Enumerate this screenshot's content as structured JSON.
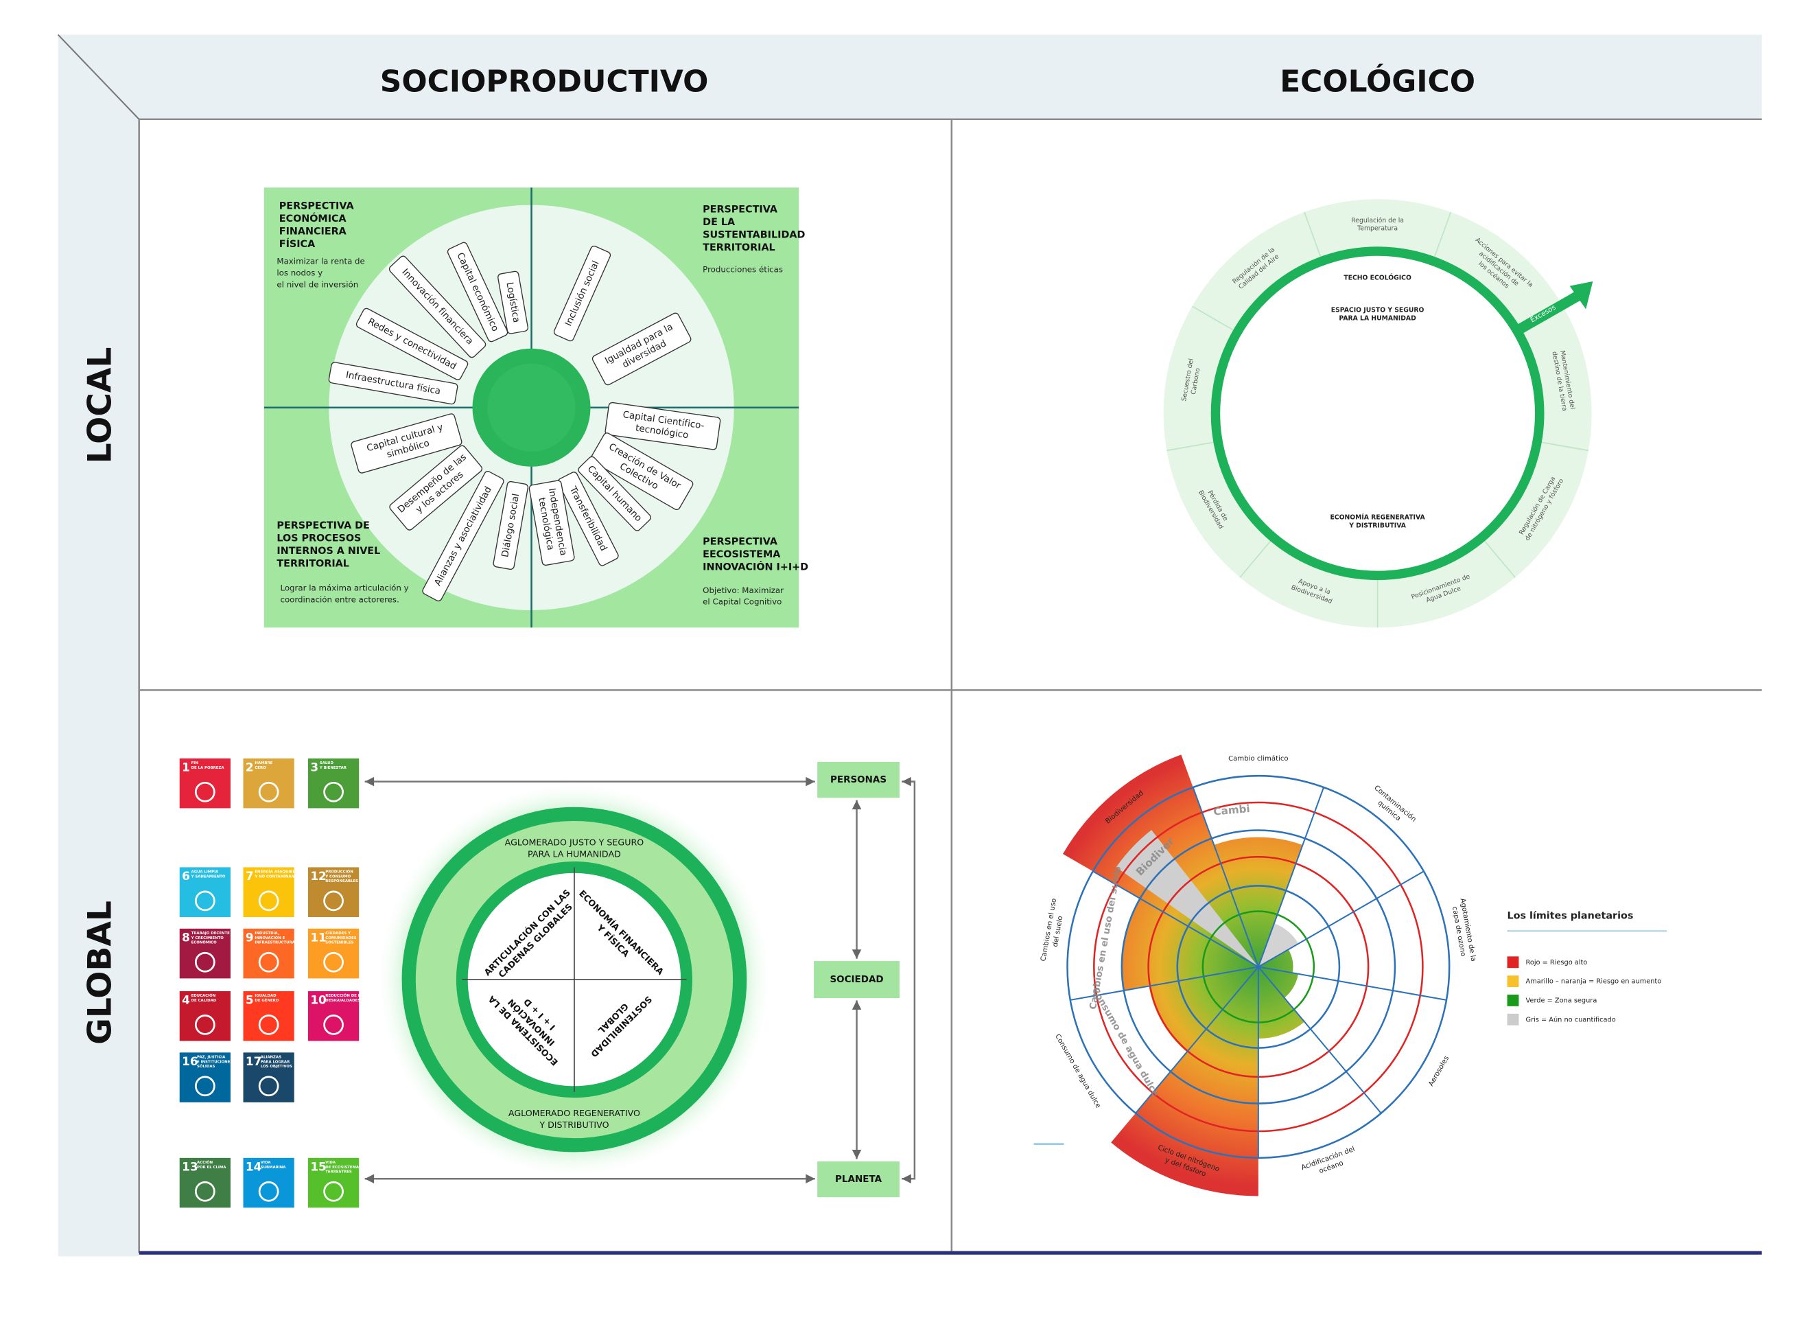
{
  "header": {
    "columns": [
      "SOCIOPRODUCTIVO",
      "ECOLÓGICO"
    ],
    "rows": [
      "LOCAL",
      "GLOBAL"
    ]
  },
  "socioproductive_local": {
    "corners": [
      {
        "title": [
          "PERSPECTIVA",
          "ECONÓMICA",
          "FINANCIERA",
          "FÍSICA"
        ],
        "text": [
          "Maximizar la renta de",
          "los nodos y",
          "el nivel de inversión"
        ]
      },
      {
        "title": [
          "PERSPECTIVA",
          "DE LA",
          "SUSTENTABILIDAD",
          "TERRITORIAL"
        ],
        "text": [
          "Producciones éticas"
        ]
      },
      {
        "title": [
          "PERSPECTIVA DE",
          "LOS PROCESOS",
          "INTERNOS A NIVEL",
          "TERRITORIAL"
        ],
        "text": [
          "Lograr la máxima articulación y",
          "coordinación entre actoreres."
        ]
      },
      {
        "title": [
          "PERSPECTIVA",
          "EECOSISTEMA",
          "INNOVACIÓN I+I+D"
        ],
        "text": [
          "Objetivo: Maximizar",
          "el Capital Cognitivo"
        ]
      }
    ],
    "spokes": [
      [
        "Logística"
      ],
      [
        "Capital económico"
      ],
      [
        "Innovación financiera"
      ],
      [
        "Redes y conectividad"
      ],
      [
        "Infraestructura física"
      ],
      [
        "Inclusión social"
      ],
      [
        "Igualdad para la",
        "diversidad"
      ],
      [
        "Capital Científico-",
        "tecnológico"
      ],
      [
        "Creación de Valor",
        "Colectivo"
      ],
      [
        "Capital humano"
      ],
      [
        "Transferibilidad"
      ],
      [
        "Independencia",
        "tecnológica"
      ],
      [
        "Diálogo social"
      ],
      [
        "Alianzas y asociatividad"
      ],
      [
        "Desempeño de las",
        "y los actores"
      ],
      [
        "Capital cultural y",
        "simbólico"
      ]
    ]
  },
  "ecological_local": {
    "center_labels": [
      [
        "TECHO ECOLÓGICO"
      ],
      [
        "ESPACIO JUSTO Y SEGURO",
        "PARA LA HUMANIDAD"
      ],
      [
        "ECONOMÍA REGENERATIVA",
        "Y DISTRIBUTIVA"
      ]
    ],
    "ring_labels": [
      [
        "Regulación de la",
        "Temperatura"
      ],
      [
        "Acciones para evitar la",
        "acidificación de",
        "los océanos"
      ],
      [
        "Mantenimiento del",
        "destino de la tierra"
      ],
      [
        "Regulación de Carga",
        "de nitrógeno y fósforo"
      ],
      [
        "Posicionamiento de",
        "Agua Dulce"
      ],
      [
        "Apoyo a la",
        "Biodiversidad"
      ],
      [
        "Pérdida de",
        "Biodiversidad"
      ],
      [
        "Secuestro del",
        "Carbono"
      ],
      [
        "Regulación de la",
        "Calidad del Aire"
      ]
    ],
    "arrow_label": "Excesos"
  },
  "socioproductive_global": {
    "sdgs": [
      {
        "number": 1,
        "title": [
          "FIN",
          "DE LA POBREZA"
        ],
        "color": "#e5243b"
      },
      {
        "number": 2,
        "title": [
          "HAMBRE",
          "CERO"
        ],
        "color": "#dda63a"
      },
      {
        "number": 3,
        "title": [
          "SALUD",
          "Y BIENESTAR"
        ],
        "color": "#4c9f38"
      },
      {
        "number": 6,
        "title": [
          "AGUA LIMPIA",
          "Y SANEAMIENTO"
        ],
        "color": "#26bde2"
      },
      {
        "number": 7,
        "title": [
          "ENERGÍA ASEQUIBLE",
          "Y NO CONTAMINANTE"
        ],
        "color": "#fcc30b"
      },
      {
        "number": 12,
        "title": [
          "PRODUCCIÓN",
          "Y CONSUMO",
          "RESPONSABLES"
        ],
        "color": "#bf8b2e"
      },
      {
        "number": 8,
        "title": [
          "TRABAJO DECENTE",
          "Y CRECIMIENTO",
          "ECONÓMICO"
        ],
        "color": "#a21942"
      },
      {
        "number": 9,
        "title": [
          "INDUSTRIA,",
          "INNOVACIÓN E",
          "INFRAESTRUCTURA"
        ],
        "color": "#fd6925"
      },
      {
        "number": 11,
        "title": [
          "CIUDADES Y",
          "COMUNIDADES",
          "SOSTENIBLES"
        ],
        "color": "#fd9d24"
      },
      {
        "number": 4,
        "title": [
          "EDUCACIÓN",
          "DE CALIDAD"
        ],
        "color": "#c5192d"
      },
      {
        "number": 5,
        "title": [
          "IGUALDAD",
          "DE GÉNERO"
        ],
        "color": "#ff3a21"
      },
      {
        "number": 10,
        "title": [
          "REDUCCIÓN DE LAS",
          "DESIGUALDADES"
        ],
        "color": "#dd1367"
      },
      {
        "number": 16,
        "title": [
          "PAZ, JUSTICIA",
          "E INSTITUCIONES",
          "SÓLIDAS"
        ],
        "color": "#00689d"
      },
      {
        "number": 17,
        "title": [
          "ALIANZAS",
          "PARA LOGRAR",
          "LOS OBJETIVOS"
        ],
        "color": "#19486a"
      },
      {
        "number": 13,
        "title": [
          "ACCIÓN",
          "POR EL CLIMA"
        ],
        "color": "#3f7e44"
      },
      {
        "number": 14,
        "title": [
          "VIDA",
          "SUBMARINA"
        ],
        "color": "#0a97d9"
      },
      {
        "number": 15,
        "title": [
          "VIDA",
          "DE ECOSISTEMAS",
          "TERRESTRES"
        ],
        "color": "#56c02b"
      }
    ],
    "ring_labels": [
      [
        "AGLOMERADO JUSTO Y SEGURO",
        "PARA LA HUMANIDAD"
      ],
      [
        "AGLOMERADO REGENERATIVO",
        "Y DISTRIBUTIVO"
      ]
    ],
    "quadrants": [
      [
        "ARTICULACIÓN CON LAS",
        "CADENAS GLOBALES"
      ],
      [
        "ECONOMÍA FINANCIERA",
        "Y FÍSICA"
      ],
      [
        "SOSTENIBILIDAD",
        "GLOBAL"
      ],
      [
        "ECOSISTEMA DE LA",
        "INNOVACIÓN",
        "I + I + D"
      ]
    ],
    "nodes": [
      "PERSONAS",
      "SOCIEDAD",
      "PLANETA"
    ]
  },
  "ecological_global": {
    "boundaries": [
      [
        "Cambio climático"
      ],
      [
        "Contaminación",
        "química"
      ],
      [
        "Agotamiento de la",
        "capa de ozono"
      ],
      [
        "Aerosoles"
      ],
      [
        "Acidificación del",
        "océano"
      ],
      [
        "Ciclo del nitrógeno",
        "y del fósforo"
      ],
      [
        "Consumo de agua dulce"
      ],
      [
        "Cambios en el uso",
        "del suelo"
      ],
      [
        "Biodiversidad"
      ]
    ],
    "ghost_labels": [
      "Cambi",
      "Biodiver",
      "Cambios en el uso del suelo",
      "Consumo de agua dulce"
    ],
    "legend": {
      "title": "Los límites planetarios",
      "items": [
        {
          "label": "Rojo = Riesgo alto",
          "color": "#e02424"
        },
        {
          "label": "Amarillo – naranja = Riesgo en aumento",
          "color": "#f6c12a"
        },
        {
          "label": "Verde = Zona segura",
          "color": "#1a9a1a"
        },
        {
          "label": "Gris = Aún no cuantificado",
          "color": "#cccccc"
        }
      ]
    }
  }
}
